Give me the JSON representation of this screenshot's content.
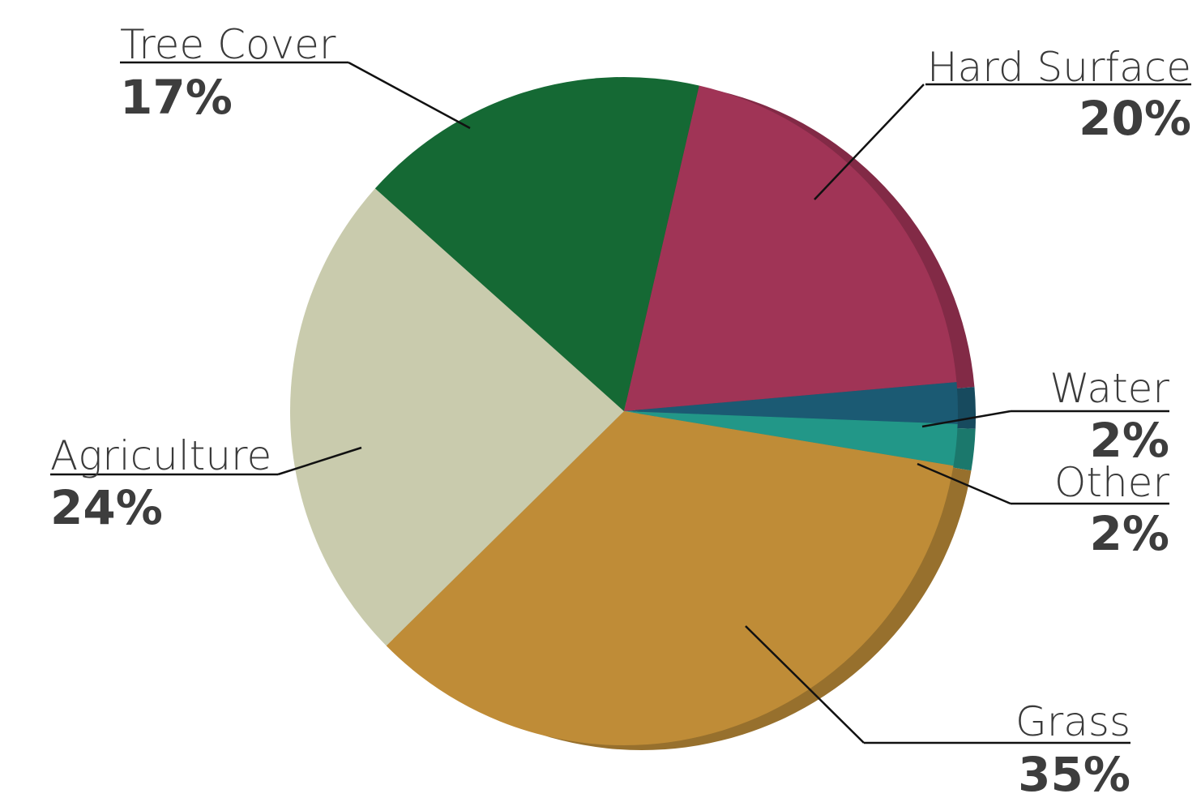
{
  "chart_data": {
    "type": "pie",
    "title": "",
    "slices": [
      {
        "label": "Hard Surface",
        "value": 20,
        "display": "20%",
        "color": "#a03456",
        "edge_color": "#822a46"
      },
      {
        "label": "Water",
        "value": 2,
        "display": "2%",
        "color": "#1b5a73",
        "edge_color": "#174a5e"
      },
      {
        "label": "Other",
        "value": 2,
        "display": "2%",
        "color": "#229788",
        "edge_color": "#1b786c"
      },
      {
        "label": "Grass",
        "value": 35,
        "display": "35%",
        "color": "#bf8c37",
        "edge_color": "#97702d"
      },
      {
        "label": "Agriculture",
        "value": 24,
        "display": "24%",
        "color": "#c9cbad",
        "edge_color": "#a9ab90"
      },
      {
        "label": "Tree Cover",
        "value": 17,
        "display": "17%",
        "color": "#156934",
        "edge_color": "#11552a"
      }
    ],
    "legend": "none",
    "labels_position": "outside with leader lines"
  }
}
